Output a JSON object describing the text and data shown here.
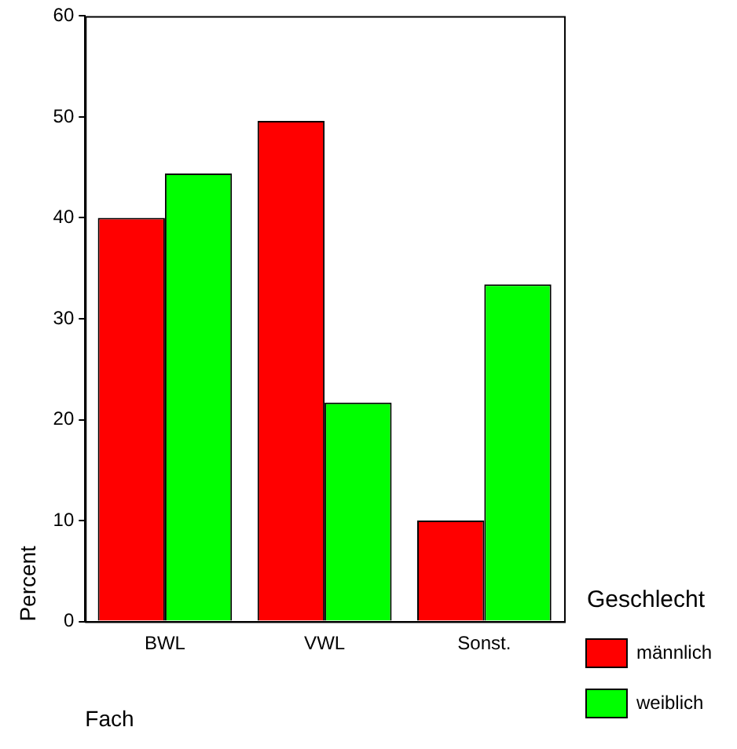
{
  "chart_data": {
    "type": "bar",
    "xlabel": "Fach",
    "ylabel": "Percent",
    "legend_title": "Geschlecht",
    "legend": "right",
    "categories": [
      "BWL",
      "VWL",
      "Sonst."
    ],
    "series": [
      {
        "name": "männlich",
        "color": "#ff0000",
        "values": [
          40,
          49.6,
          10
        ]
      },
      {
        "name": "weiblich",
        "color": "#00ff00",
        "values": [
          44.4,
          21.7,
          33.4
        ]
      }
    ],
    "ylim": [
      0,
      60
    ],
    "yticks": [
      0,
      10,
      20,
      30,
      40,
      50,
      60
    ],
    "grid": false
  }
}
